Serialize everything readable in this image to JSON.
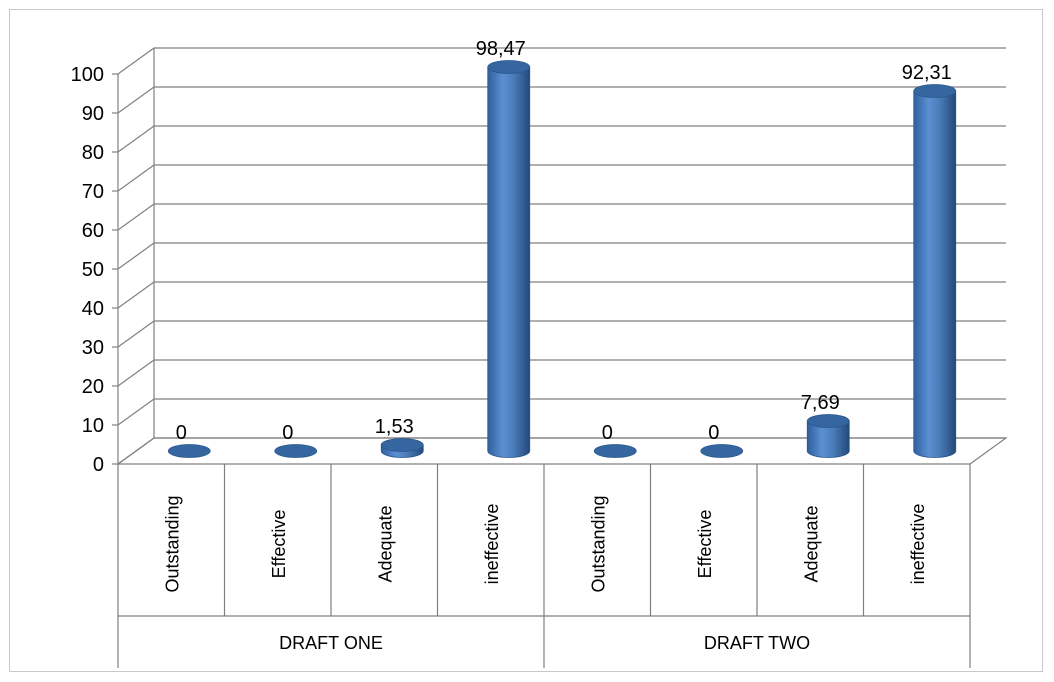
{
  "chart_data": {
    "type": "bar",
    "style": "3d-cylinder",
    "groups": [
      {
        "name": "DRAFT ONE",
        "categories": [
          "Outstanding",
          "Effective",
          "Adequate",
          "ineffective"
        ],
        "values": [
          0,
          0,
          1.53,
          98.47
        ],
        "labels": [
          "0",
          "0",
          "1,53",
          "98,47"
        ]
      },
      {
        "name": "DRAFT TWO",
        "categories": [
          "Outstanding",
          "Effective",
          "Adequate",
          "ineffective"
        ],
        "values": [
          0,
          0,
          7.69,
          92.31
        ],
        "labels": [
          "0",
          "0",
          "7,69",
          "92,31"
        ]
      }
    ],
    "ylim": [
      0,
      100
    ],
    "yticks": [
      0,
      10,
      20,
      30,
      40,
      50,
      60,
      70,
      80,
      90,
      100
    ],
    "grid": true,
    "legend": "none",
    "colors": {
      "bar": "#4a7ebb",
      "bar_dark": "#2a568f",
      "bar_top": "#3566a0",
      "grid": "#808080"
    }
  }
}
